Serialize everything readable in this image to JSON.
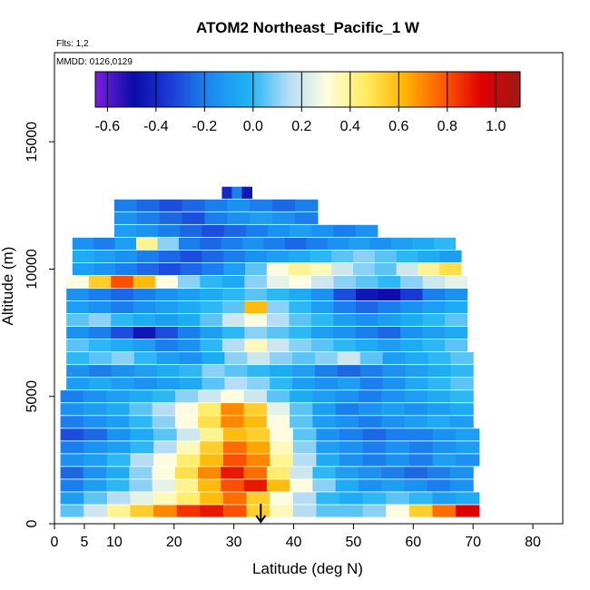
{
  "chart_data": {
    "type": "heatmap",
    "title": "ATOM2 Northeast_Pacific_1 W",
    "flights_text": "Flts: 1,2",
    "mmdd_text": "MMDD: 0126,0129",
    "xlabel": "Latitude (deg N)",
    "ylabel": "Altitude (m)",
    "xlim": [
      0,
      85
    ],
    "ylim": [
      0,
      18500
    ],
    "x_ticks": [
      "0",
      "5",
      "10",
      "20",
      "30",
      "40",
      "50",
      "60",
      "70",
      "80"
    ],
    "x_tick_values": [
      0,
      5,
      10,
      20,
      30,
      40,
      50,
      60,
      70,
      80
    ],
    "y_ticks": [
      "0",
      "5000",
      "10000",
      "15000"
    ],
    "y_tick_values": [
      0,
      5000,
      10000,
      15000
    ],
    "colorbar": {
      "range": [
        -0.65,
        1.1
      ],
      "tick_labels": [
        "-0.6",
        "-0.4",
        "-0.2",
        "0.0",
        "0.2",
        "0.4",
        "0.6",
        "0.8",
        "1.0"
      ],
      "tick_values": [
        -0.6,
        -0.4,
        -0.2,
        0.0,
        0.2,
        0.4,
        0.6,
        0.8,
        1.0
      ],
      "colors": [
        "#7b1fe0",
        "#0a0aa8",
        "#1c3fd8",
        "#1a8cf0",
        "#20b4f5",
        "#b4dcf5",
        "#fffde0",
        "#ffec60",
        "#ffb400",
        "#ff5a00",
        "#e00000",
        "#a01818"
      ]
    },
    "arrow_latitude": 34.5,
    "layers": [
      {
        "alt": 500,
        "lat_min": 1,
        "lat_max": 71,
        "values": [
          0.05,
          0.2,
          0.4,
          0.55,
          0.7,
          0.85,
          0.9,
          0.8,
          0.55,
          0.35,
          0.15,
          0.05,
          0.05,
          0.1,
          0.3,
          0.55,
          0.75,
          0.95
        ]
      },
      {
        "alt": 1000,
        "lat_min": 1,
        "lat_max": 71,
        "values": [
          -0.1,
          0.05,
          0.15,
          0.25,
          0.35,
          0.45,
          0.6,
          0.75,
          0.55,
          0.3,
          0.15,
          0.0,
          -0.05,
          0.0,
          0.05,
          0.0,
          -0.1,
          -0.05
        ]
      },
      {
        "alt": 1500,
        "lat_min": 1,
        "lat_max": 70,
        "values": [
          -0.2,
          -0.1,
          0.0,
          0.1,
          0.25,
          0.4,
          0.6,
          0.8,
          0.9,
          0.6,
          0.3,
          0.1,
          -0.05,
          -0.15,
          -0.1,
          -0.15,
          -0.2,
          -0.15
        ]
      },
      {
        "alt": 2000,
        "lat_min": 1,
        "lat_max": 70,
        "values": [
          -0.25,
          -0.15,
          -0.05,
          0.1,
          0.3,
          0.5,
          0.7,
          0.9,
          0.75,
          0.45,
          0.2,
          0.0,
          -0.1,
          -0.15,
          -0.2,
          -0.25,
          -0.2,
          -0.15
        ]
      },
      {
        "alt": 2500,
        "lat_min": 1,
        "lat_max": 71,
        "values": [
          -0.15,
          -0.1,
          0.0,
          0.15,
          0.3,
          0.45,
          0.6,
          0.8,
          0.7,
          0.4,
          0.15,
          -0.05,
          -0.15,
          -0.2,
          -0.15,
          -0.2,
          -0.1,
          -0.15
        ]
      },
      {
        "alt": 3000,
        "lat_min": 1,
        "lat_max": 71,
        "values": [
          -0.2,
          -0.15,
          -0.1,
          0.0,
          0.15,
          0.35,
          0.55,
          0.75,
          0.65,
          0.35,
          0.1,
          -0.1,
          -0.15,
          -0.2,
          -0.15,
          -0.2,
          -0.15,
          -0.1
        ]
      },
      {
        "alt": 3500,
        "lat_min": 1,
        "lat_max": 71,
        "values": [
          -0.3,
          -0.25,
          -0.15,
          -0.05,
          0.05,
          0.2,
          0.4,
          0.6,
          0.55,
          0.3,
          0.05,
          -0.15,
          -0.2,
          -0.25,
          -0.2,
          -0.2,
          -0.15,
          -0.1
        ]
      },
      {
        "alt": 4000,
        "lat_min": 1,
        "lat_max": 70,
        "values": [
          -0.2,
          -0.15,
          -0.1,
          0.0,
          0.1,
          0.3,
          0.5,
          0.7,
          0.6,
          0.3,
          0.05,
          -0.1,
          -0.15,
          -0.2,
          -0.15,
          -0.1,
          -0.05,
          -0.1
        ]
      },
      {
        "alt": 4500,
        "lat_min": 1,
        "lat_max": 70,
        "values": [
          -0.15,
          -0.1,
          -0.05,
          0.05,
          0.15,
          0.3,
          0.45,
          0.7,
          0.55,
          0.25,
          0.05,
          -0.1,
          -0.2,
          -0.15,
          -0.1,
          -0.15,
          -0.1,
          -0.05
        ]
      },
      {
        "alt": 5000,
        "lat_min": 1,
        "lat_max": 70,
        "values": [
          -0.2,
          -0.15,
          -0.1,
          -0.05,
          0.0,
          0.1,
          0.2,
          0.3,
          0.2,
          0.05,
          -0.05,
          -0.1,
          -0.15,
          -0.2,
          -0.15,
          -0.1,
          -0.05,
          0.0
        ]
      },
      {
        "alt": 5500,
        "lat_min": 2,
        "lat_max": 70,
        "values": [
          -0.1,
          -0.05,
          -0.1,
          -0.15,
          -0.1,
          -0.05,
          0.05,
          0.15,
          0.1,
          0.0,
          -0.1,
          -0.15,
          -0.1,
          -0.2,
          -0.15,
          -0.05,
          0.0,
          0.05
        ]
      },
      {
        "alt": 6000,
        "lat_min": 2,
        "lat_max": 70,
        "values": [
          -0.15,
          -0.2,
          -0.15,
          -0.1,
          -0.05,
          0.0,
          0.1,
          0.05,
          0.0,
          -0.05,
          -0.1,
          -0.2,
          -0.25,
          -0.2,
          -0.15,
          -0.1,
          -0.05,
          0.0
        ]
      },
      {
        "alt": 6500,
        "lat_min": 2,
        "lat_max": 70,
        "values": [
          0.0,
          0.05,
          0.1,
          0.0,
          -0.1,
          -0.15,
          -0.05,
          0.1,
          0.2,
          0.1,
          0.05,
          0.1,
          0.2,
          0.05,
          -0.1,
          -0.05,
          0.0,
          0.05
        ]
      },
      {
        "alt": 7000,
        "lat_min": 2,
        "lat_max": 69,
        "values": [
          0.05,
          0.0,
          -0.05,
          -0.1,
          -0.2,
          -0.15,
          0.0,
          0.15,
          0.35,
          0.2,
          0.1,
          0.05,
          0.0,
          -0.05,
          -0.1,
          -0.05,
          0.0,
          0.05
        ]
      },
      {
        "alt": 7500,
        "lat_min": 2,
        "lat_max": 69,
        "values": [
          -0.15,
          -0.2,
          -0.3,
          -0.45,
          -0.3,
          -0.2,
          -0.1,
          0.0,
          0.1,
          0.05,
          0.0,
          -0.1,
          -0.15,
          -0.2,
          -0.25,
          -0.15,
          -0.1,
          -0.05
        ]
      },
      {
        "alt": 8000,
        "lat_min": 2,
        "lat_max": 69,
        "values": [
          0.05,
          0.1,
          0.0,
          -0.05,
          -0.1,
          -0.05,
          0.05,
          0.2,
          0.3,
          0.15,
          0.05,
          0.0,
          -0.1,
          -0.15,
          -0.1,
          -0.05,
          0.0,
          0.05
        ]
      },
      {
        "alt": 8500,
        "lat_min": 2,
        "lat_max": 69,
        "values": [
          -0.1,
          -0.15,
          -0.2,
          -0.15,
          -0.1,
          -0.05,
          0.0,
          0.05,
          0.6,
          0.1,
          0.0,
          -0.1,
          -0.2,
          -0.25,
          -0.2,
          -0.15,
          -0.1,
          -0.05
        ]
      },
      {
        "alt": 9000,
        "lat_min": 2,
        "lat_max": 69,
        "values": [
          -0.15,
          -0.2,
          -0.25,
          -0.2,
          -0.15,
          -0.1,
          -0.05,
          0.0,
          0.05,
          0.0,
          -0.05,
          -0.15,
          -0.3,
          -0.45,
          -0.5,
          -0.35,
          -0.2,
          -0.15
        ]
      },
      {
        "alt": 9500,
        "lat_min": 2,
        "lat_max": 69,
        "values": [
          0.3,
          0.55,
          0.8,
          0.6,
          0.3,
          0.1,
          0.0,
          -0.05,
          0.1,
          0.25,
          0.3,
          0.2,
          0.1,
          0.05,
          0.0,
          0.1,
          0.2,
          0.25
        ]
      },
      {
        "alt": 10000,
        "lat_min": 3,
        "lat_max": 68,
        "values": [
          -0.1,
          -0.15,
          -0.2,
          -0.25,
          -0.3,
          -0.25,
          -0.2,
          -0.1,
          0.05,
          0.3,
          0.4,
          0.35,
          0.2,
          0.1,
          0.05,
          0.2,
          0.4,
          0.5
        ]
      },
      {
        "alt": 10500,
        "lat_min": 3,
        "lat_max": 68,
        "values": [
          -0.05,
          -0.1,
          -0.15,
          -0.2,
          -0.25,
          -0.3,
          -0.25,
          -0.2,
          -0.15,
          -0.1,
          -0.05,
          0.0,
          0.05,
          0.1,
          0.05,
          0.0,
          -0.05,
          -0.1
        ]
      },
      {
        "alt": 11000,
        "lat_min": 3,
        "lat_max": 67,
        "values": [
          -0.15,
          -0.2,
          -0.1,
          0.4,
          0.1,
          -0.2,
          -0.25,
          -0.2,
          -0.15,
          -0.2,
          -0.25,
          -0.2,
          -0.15,
          -0.1,
          -0.15,
          -0.1,
          -0.05,
          0.0
        ]
      },
      {
        "alt": 11500,
        "lat_min": 10,
        "lat_max": 54,
        "values": [
          -0.1,
          -0.15,
          -0.2,
          -0.25,
          -0.3,
          -0.25,
          -0.2,
          -0.15,
          -0.1,
          -0.15,
          -0.2,
          -0.15
        ]
      },
      {
        "alt": 12000,
        "lat_min": 10,
        "lat_max": 44,
        "values": [
          -0.15,
          -0.2,
          -0.25,
          -0.3,
          -0.2,
          -0.15,
          -0.1,
          -0.15,
          -0.2
        ]
      },
      {
        "alt": 12500,
        "lat_min": 10,
        "lat_max": 44,
        "values": [
          -0.2,
          -0.25,
          -0.3,
          -0.25,
          -0.2,
          -0.15,
          -0.2,
          -0.25,
          -0.2
        ]
      },
      {
        "alt": 13000,
        "lat_min": 28,
        "lat_max": 33,
        "values": [
          -0.4,
          -0.2,
          -0.45
        ]
      }
    ]
  }
}
